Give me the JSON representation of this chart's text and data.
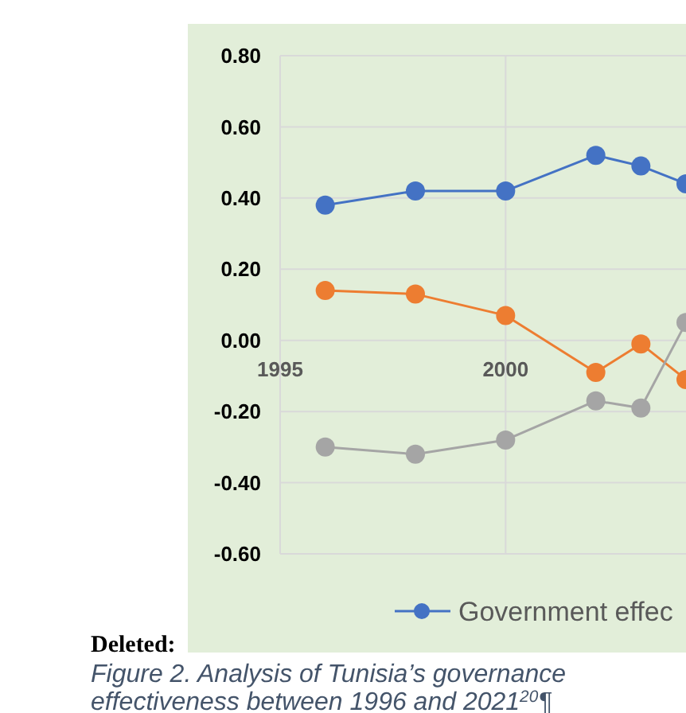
{
  "chart_data": {
    "type": "line",
    "x": [
      1996,
      1998,
      2000,
      2002,
      2003,
      2004
    ],
    "series": [
      {
        "name": "Government effec",
        "color": "#4472c4",
        "values": [
          0.38,
          0.42,
          0.42,
          0.52,
          0.49,
          0.44
        ]
      },
      {
        "color": "#ed7d31",
        "values": [
          0.14,
          0.13,
          0.07,
          -0.09,
          -0.01,
          -0.11
        ]
      },
      {
        "color": "#a5a5a5",
        "values": [
          -0.3,
          -0.32,
          -0.28,
          -0.17,
          -0.19,
          0.05
        ]
      }
    ],
    "xlim": [
      1995,
      2004
    ],
    "xticks": [
      1995,
      2000
    ],
    "ylim": [
      -0.6,
      0.8
    ],
    "yticks": [
      {
        "value": -0.6,
        "label": "-0.60"
      },
      {
        "value": -0.4,
        "label": "-0.40"
      },
      {
        "value": -0.2,
        "label": "-0.20"
      },
      {
        "value": 0,
        "label": "0.00"
      },
      {
        "value": 0.2,
        "label": "0.20"
      },
      {
        "value": 0.4,
        "label": "0.40"
      },
      {
        "value": 0.6,
        "label": "0.60"
      },
      {
        "value": 0.8,
        "label": "0.80"
      }
    ],
    "grid": true,
    "legend": "bottom",
    "marker": "circle",
    "line_style": "solid",
    "annotations": [
      "Deleted:",
      "Figure 2. Analysis of Tunisia’s governance effectiveness between 1996 and 2021$^{20}$¶"
    ]
  }
}
